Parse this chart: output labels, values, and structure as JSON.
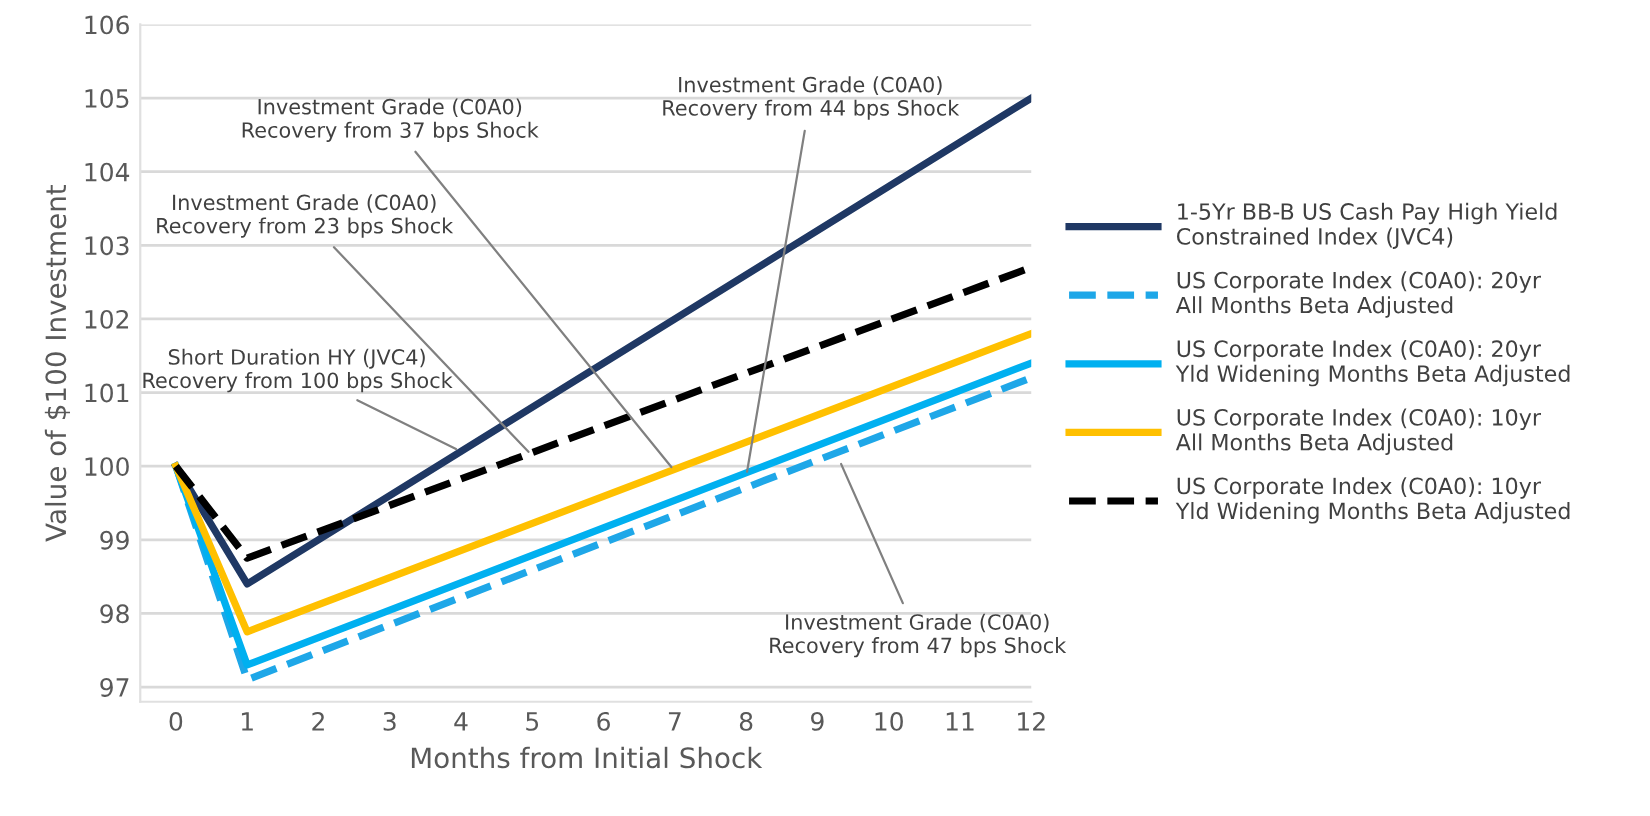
{
  "chart_data": {
    "type": "line",
    "xlabel": "Months from Initial Shock",
    "ylabel": "Value of $100 Investment",
    "xlim": [
      -0.5,
      12
    ],
    "xticks": [
      0,
      1,
      2,
      3,
      4,
      5,
      6,
      7,
      8,
      9,
      10,
      11,
      12
    ],
    "ylim": [
      96.8,
      106
    ],
    "yticks": [
      97,
      98,
      99,
      100,
      101,
      102,
      103,
      104,
      105,
      106
    ],
    "grid": "y",
    "legend": "right",
    "marker": "none",
    "series": [
      {
        "name": "1-5Yr BB-B US Cash Pay High Yield\nConstrained Index (JVC4)",
        "color": "#1f3864",
        "line_style": "solid",
        "x": [
          0,
          1,
          12
        ],
        "values": [
          100,
          98.4,
          105.0
        ]
      },
      {
        "name": "US Corporate Index (C0A0): 20yr\nAll Months Beta Adjusted",
        "color": "#1ea7e8",
        "line_style": "dashed",
        "x": [
          0,
          1,
          12
        ],
        "values": [
          100,
          97.1,
          101.2
        ]
      },
      {
        "name": "US Corporate Index (C0A0): 20yr\nYld Widening Months Beta Adjusted",
        "color": "#00b0f0",
        "line_style": "solid",
        "x": [
          0,
          1,
          12
        ],
        "values": [
          100,
          97.3,
          101.4
        ]
      },
      {
        "name": "US Corporate Index (C0A0): 10yr\nAll Months Beta Adjusted",
        "color": "#ffc000",
        "line_style": "solid",
        "x": [
          0,
          1,
          12
        ],
        "values": [
          100,
          97.75,
          101.8
        ]
      },
      {
        "name": "US Corporate Index (C0A0): 10yr\nYld Widening Months Beta Adjusted",
        "color": "#000000",
        "line_style": "dashed",
        "x": [
          0,
          1,
          12
        ],
        "values": [
          100,
          98.75,
          102.7
        ]
      }
    ],
    "annotations": [
      {
        "text": "Investment Grade (C0A0)\nRecovery from 37 bps Shock",
        "x": 7,
        "y": 99.93
      },
      {
        "text": "Investment Grade (C0A0)\nRecovery from 44 bps Shock",
        "x": 8,
        "y": 99.85
      },
      {
        "text": "Investment Grade (C0A0)\nRecovery from 23 bps Shock",
        "x": 5,
        "y": 100.14
      },
      {
        "text": "Short Duration HY (JVC4)\nRecovery from 100 bps Shock",
        "x": 4,
        "y": 100.2
      },
      {
        "text": "Investment Grade (C0A0)\nRecovery from 47 bps Shock",
        "x": 9.3,
        "y": 100.1
      }
    ]
  }
}
